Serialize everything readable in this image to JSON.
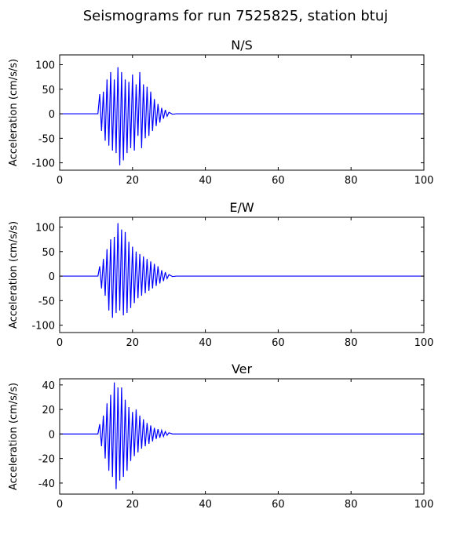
{
  "figure": {
    "suptitle": "Seismograms for run 7525825, station btuj"
  },
  "chart_data": [
    {
      "type": "line",
      "title": "N/S",
      "xlabel": "",
      "ylabel": "Acceleration (cm/s/s)",
      "xlim": [
        0,
        100
      ],
      "ylim": [
        -115,
        120
      ],
      "xticks": [
        0,
        20,
        40,
        60,
        80,
        100
      ],
      "yticks": [
        -100,
        -50,
        0,
        50,
        100
      ],
      "grid": false,
      "color": "#0000ff",
      "series": [
        {
          "x": [
            0,
            10.5,
            11,
            11.5,
            12,
            12.5,
            13,
            13.5,
            14,
            14.5,
            15,
            15.5,
            16,
            16.5,
            17,
            17.5,
            18,
            18.5,
            19,
            19.5,
            20,
            20.5,
            21,
            21.5,
            22,
            22.5,
            23,
            23.5,
            24,
            24.5,
            25,
            25.5,
            26,
            26.5,
            27,
            27.5,
            28,
            28.5,
            29,
            29.5,
            30,
            31,
            32,
            100
          ],
          "y": [
            0,
            0,
            40,
            -35,
            45,
            -55,
            70,
            -65,
            85,
            -75,
            70,
            -80,
            95,
            -105,
            85,
            -95,
            70,
            -80,
            65,
            -70,
            80,
            -75,
            60,
            -45,
            85,
            -70,
            60,
            -50,
            55,
            -45,
            45,
            -35,
            30,
            -25,
            20,
            -18,
            12,
            -10,
            8,
            -5,
            3,
            -1,
            0,
            0
          ]
        }
      ]
    },
    {
      "type": "line",
      "title": "E/W",
      "xlabel": "",
      "ylabel": "Acceleration (cm/s/s)",
      "xlim": [
        0,
        100
      ],
      "ylim": [
        -115,
        120
      ],
      "xticks": [
        0,
        20,
        40,
        60,
        80,
        100
      ],
      "yticks": [
        -100,
        -50,
        0,
        50,
        100
      ],
      "grid": false,
      "color": "#0000ff",
      "series": [
        {
          "x": [
            0,
            10.5,
            11,
            11.5,
            12,
            12.5,
            13,
            13.5,
            14,
            14.5,
            15,
            15.5,
            16,
            16.5,
            17,
            17.5,
            18,
            18.5,
            19,
            19.5,
            20,
            20.5,
            21,
            21.5,
            22,
            22.5,
            23,
            23.5,
            24,
            24.5,
            25,
            25.5,
            26,
            26.5,
            27,
            27.5,
            28,
            28.5,
            29,
            29.5,
            30,
            31,
            32,
            100
          ],
          "y": [
            0,
            0,
            20,
            -25,
            35,
            -40,
            55,
            -70,
            75,
            -85,
            80,
            -75,
            108,
            -70,
            95,
            -80,
            90,
            -75,
            70,
            -65,
            60,
            -55,
            50,
            -45,
            45,
            -40,
            40,
            -35,
            35,
            -30,
            30,
            -25,
            25,
            -20,
            20,
            -15,
            12,
            -10,
            8,
            -5,
            3,
            -1,
            0,
            0
          ]
        }
      ]
    },
    {
      "type": "line",
      "title": "Ver",
      "xlabel": "",
      "ylabel": "Acceleration (cm/s/s)",
      "xlim": [
        0,
        100
      ],
      "ylim": [
        -49,
        45
      ],
      "xticks": [
        0,
        20,
        40,
        60,
        80,
        100
      ],
      "yticks": [
        -40,
        -20,
        0,
        20,
        40
      ],
      "grid": false,
      "color": "#0000ff",
      "series": [
        {
          "x": [
            0,
            10.5,
            11,
            11.5,
            12,
            12.5,
            13,
            13.5,
            14,
            14.5,
            15,
            15.5,
            16,
            16.5,
            17,
            17.5,
            18,
            18.5,
            19,
            19.5,
            20,
            20.5,
            21,
            21.5,
            22,
            22.5,
            23,
            23.5,
            24,
            24.5,
            25,
            25.5,
            26,
            26.5,
            27,
            27.5,
            28,
            28.5,
            29,
            29.5,
            30,
            31,
            32,
            100
          ],
          "y": [
            0,
            0,
            8,
            -10,
            15,
            -20,
            25,
            -30,
            32,
            -35,
            42,
            -45,
            38,
            -38,
            38,
            -35,
            28,
            -30,
            22,
            -22,
            18,
            -18,
            20,
            -15,
            15,
            -12,
            12,
            -10,
            9,
            -8,
            7,
            -6,
            5,
            -4,
            4,
            -3,
            3,
            -2,
            2,
            -1,
            1,
            0,
            0,
            0
          ]
        }
      ]
    }
  ]
}
